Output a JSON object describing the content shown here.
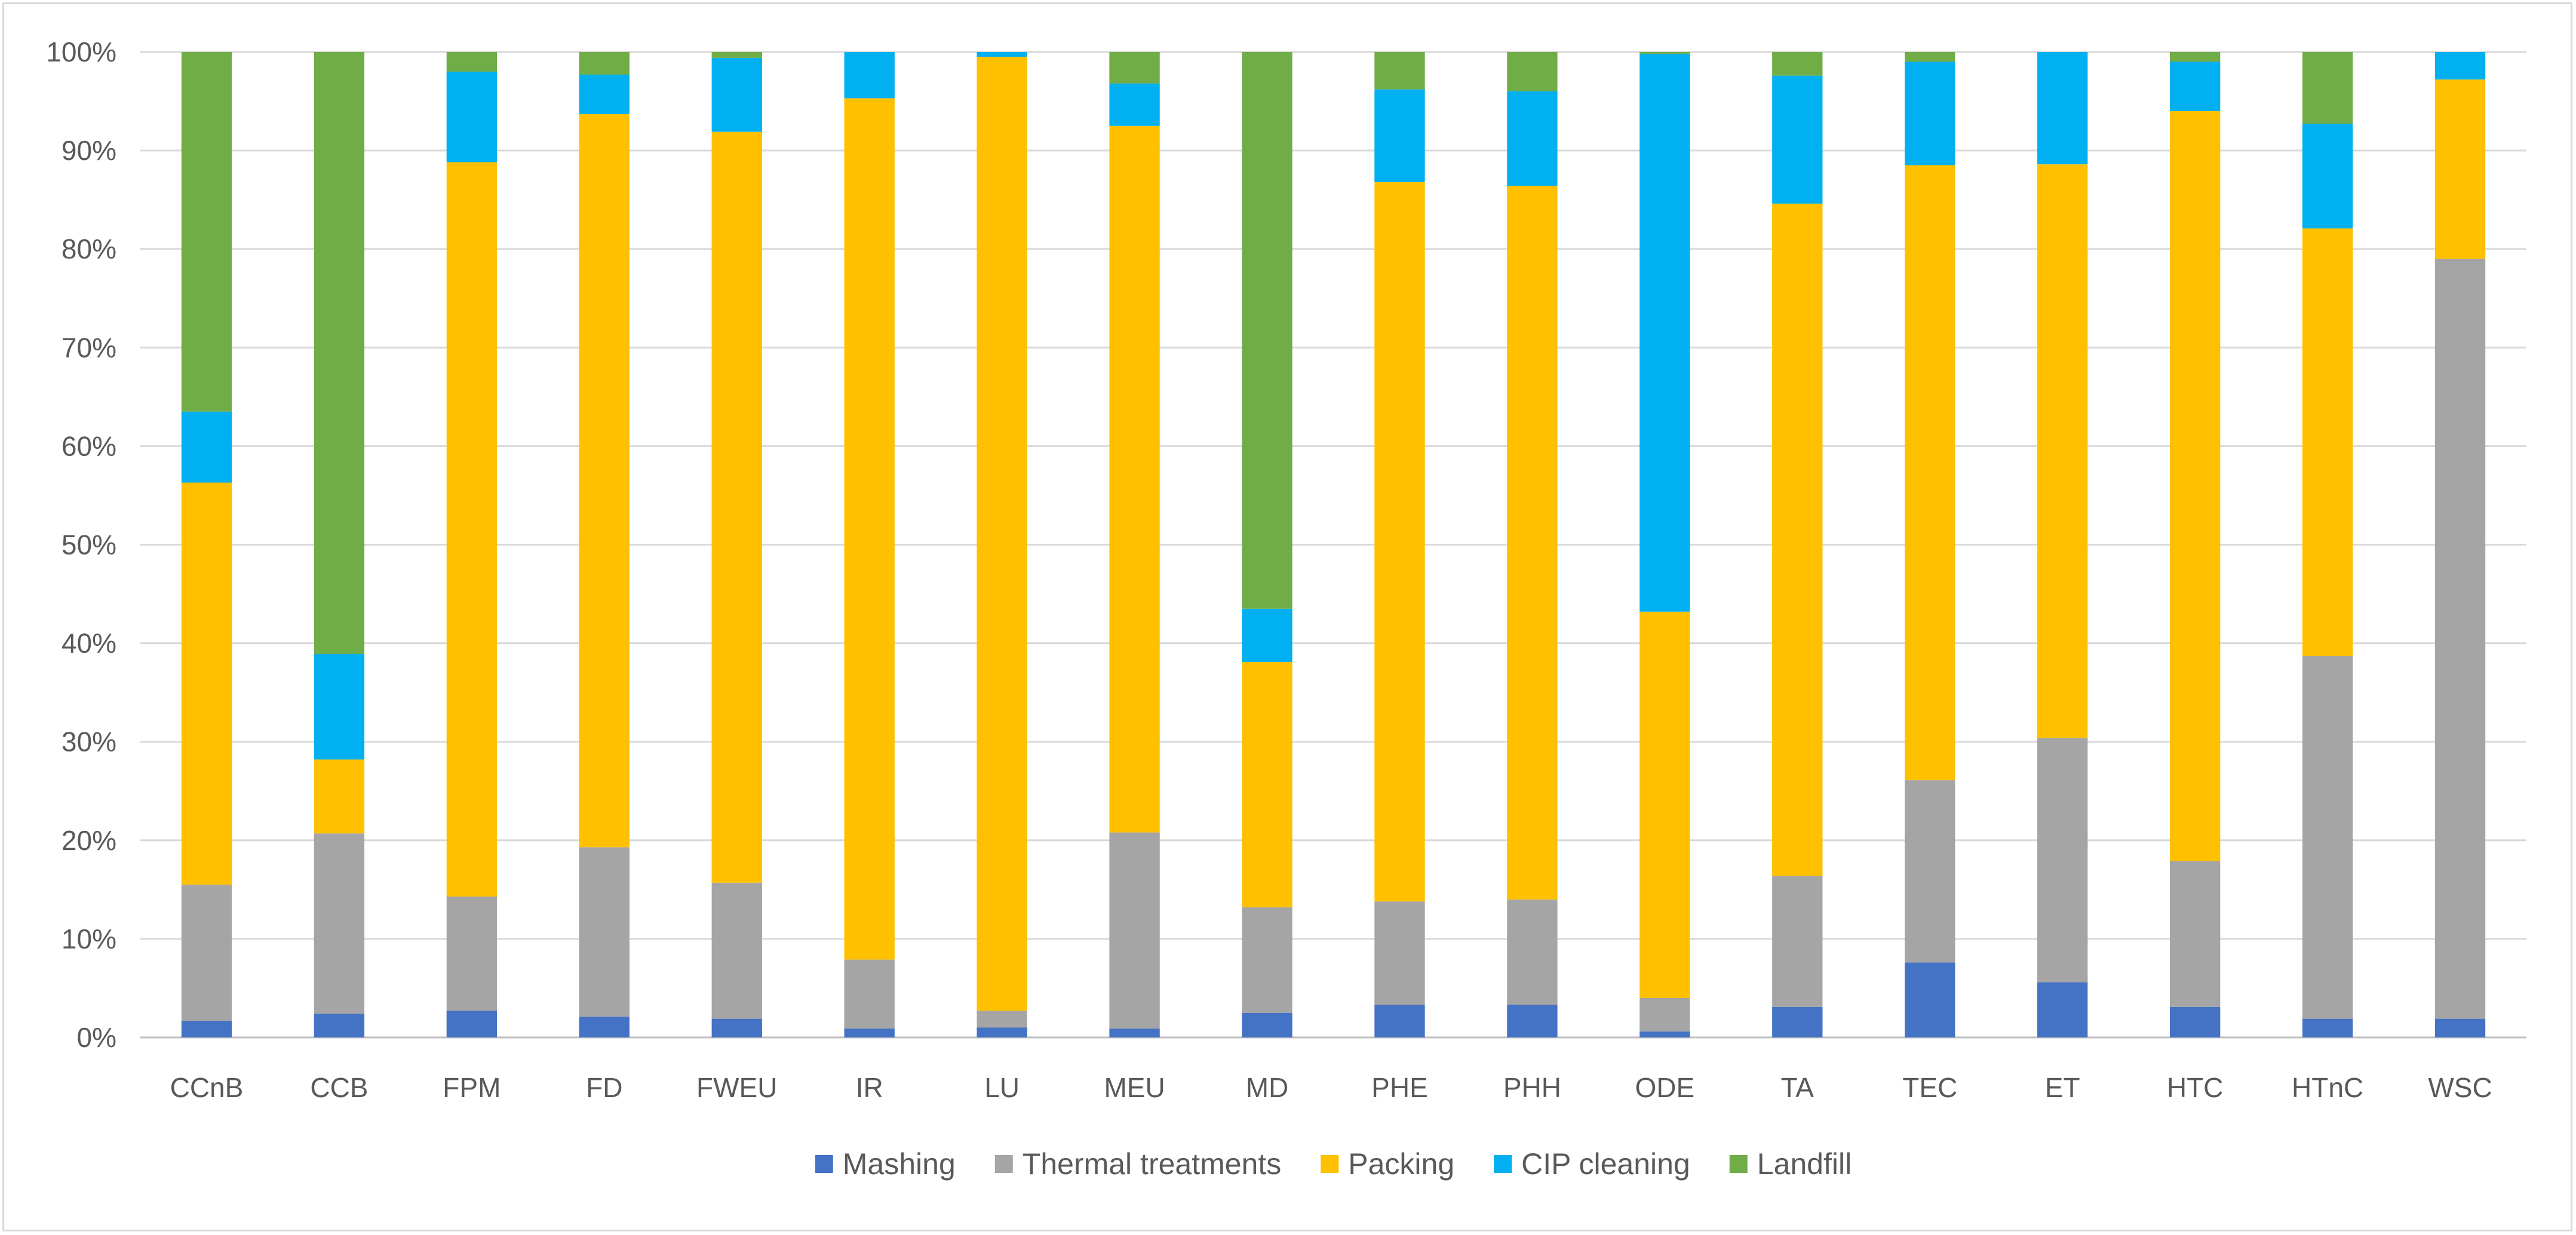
{
  "chart_data": {
    "type": "bar",
    "stacked": "percent",
    "categories": [
      "CCnB",
      "CCB",
      "FPM",
      "FD",
      "FWEU",
      "IR",
      "LU",
      "MEU",
      "MD",
      "PHE",
      "PHH",
      "ODE",
      "TA",
      "TEC",
      "ET",
      "HTC",
      "HTnC",
      "WSC"
    ],
    "series": [
      {
        "name": "Mashing",
        "color": "#4472c4",
        "values": [
          1.7,
          2.4,
          2.7,
          2.1,
          1.9,
          0.9,
          1.0,
          0.9,
          2.5,
          3.3,
          3.3,
          0.6,
          3.1,
          7.6,
          5.6,
          3.1,
          1.9,
          1.9
        ]
      },
      {
        "name": "Thermal treatments",
        "color": "#a5a5a5",
        "values": [
          13.8,
          18.3,
          11.6,
          17.2,
          13.8,
          7.0,
          1.7,
          19.9,
          10.7,
          10.5,
          10.7,
          3.4,
          13.3,
          18.5,
          24.8,
          14.8,
          36.8,
          77.1
        ]
      },
      {
        "name": "Packing",
        "color": "#ffc000",
        "values": [
          40.8,
          7.5,
          74.5,
          74.4,
          76.2,
          87.4,
          96.8,
          71.7,
          24.9,
          73.0,
          72.4,
          39.2,
          68.2,
          62.4,
          58.2,
          76.1,
          43.4,
          18.2
        ]
      },
      {
        "name": "CIP cleaning",
        "color": "#00b0f0",
        "values": [
          7.2,
          10.7,
          9.2,
          4.0,
          7.5,
          4.7,
          0.5,
          4.3,
          5.4,
          9.4,
          9.6,
          56.6,
          13.0,
          10.5,
          11.4,
          5.0,
          10.6,
          2.8
        ]
      },
      {
        "name": "Landfill",
        "color": "#70ad47",
        "values": [
          36.5,
          61.1,
          2.0,
          2.3,
          0.6,
          0.0,
          0.0,
          3.2,
          56.5,
          3.8,
          4.0,
          0.2,
          2.4,
          1.0,
          0.0,
          1.0,
          7.3,
          0.0
        ]
      }
    ],
    "y_ticks": [
      "0%",
      "10%",
      "20%",
      "30%",
      "40%",
      "50%",
      "60%",
      "70%",
      "80%",
      "90%",
      "100%"
    ],
    "ylim": [
      0,
      100
    ],
    "grid": true,
    "legend_position": "bottom",
    "title": "",
    "xlabel": "",
    "ylabel": ""
  }
}
